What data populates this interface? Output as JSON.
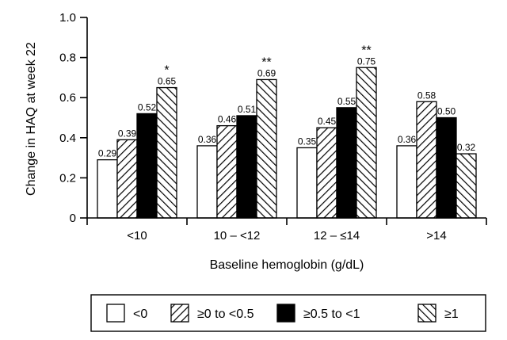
{
  "chart_data": {
    "type": "bar",
    "categories": [
      "<10",
      "10 – <12",
      "12 – ≤14",
      ">14"
    ],
    "series": [
      {
        "name": "<0",
        "pattern": "white",
        "values": [
          0.29,
          0.36,
          0.35,
          0.36
        ]
      },
      {
        "name": "≥0 to <0.5",
        "pattern": "hatch-forward",
        "values": [
          0.39,
          0.46,
          0.45,
          0.58
        ]
      },
      {
        "name": "≥0.5 to <1",
        "pattern": "solid-black",
        "values": [
          0.52,
          0.51,
          0.55,
          0.5
        ]
      },
      {
        "name": "≥1",
        "pattern": "hatch-backward",
        "values": [
          0.65,
          0.69,
          0.75,
          0.32
        ]
      }
    ],
    "value_labels": [
      [
        "0.29",
        "0.39",
        "0.52",
        "0.65"
      ],
      [
        "0.36",
        "0.46",
        "0.51",
        "0.69"
      ],
      [
        "0.35",
        "0.45",
        "0.55",
        "0.75"
      ],
      [
        "0.36",
        "0.58",
        "0.50",
        "0.32"
      ]
    ],
    "significance": [
      {
        "category_index": 0,
        "series_index": 3,
        "label": "*"
      },
      {
        "category_index": 1,
        "series_index": 3,
        "label": "**"
      },
      {
        "category_index": 2,
        "series_index": 3,
        "label": "**"
      }
    ],
    "xlabel": "Baseline hemoglobin (g/dL)",
    "ylabel": "Change in HAQ at week 22",
    "ylim": [
      0,
      1.0
    ],
    "yticks": [
      "0",
      "0.2",
      "0.4",
      "0.6",
      "0.8",
      "1.0"
    ],
    "ytick_values": [
      0,
      0.2,
      0.4,
      0.6,
      0.8,
      1.0
    ],
    "grid": false,
    "legend_position": "bottom",
    "colors": {
      "axis": "#000000",
      "fill_dark": "#000000",
      "fill_light": "#ffffff"
    }
  }
}
